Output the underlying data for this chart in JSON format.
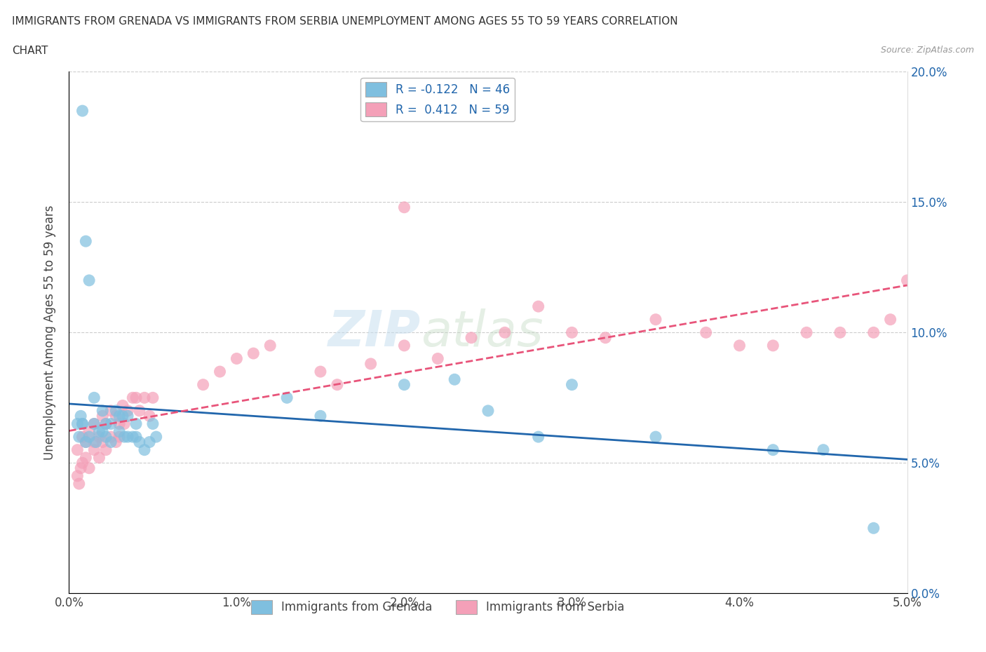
{
  "title_line1": "IMMIGRANTS FROM GRENADA VS IMMIGRANTS FROM SERBIA UNEMPLOYMENT AMONG AGES 55 TO 59 YEARS CORRELATION",
  "title_line2": "CHART",
  "source": "Source: ZipAtlas.com",
  "ylabel": "Unemployment Among Ages 55 to 59 years",
  "legend_grenada": "Immigrants from Grenada",
  "legend_serbia": "Immigrants from Serbia",
  "r_grenada": -0.122,
  "n_grenada": 46,
  "r_serbia": 0.412,
  "n_serbia": 59,
  "xlim": [
    0.0,
    0.05
  ],
  "ylim": [
    0.0,
    0.2
  ],
  "xtick_vals": [
    0.0,
    0.01,
    0.02,
    0.03,
    0.04,
    0.05
  ],
  "xtick_labels": [
    "0.0%",
    "1.0%",
    "2.0%",
    "3.0%",
    "4.0%",
    "5.0%"
  ],
  "ytick_vals": [
    0.0,
    0.05,
    0.1,
    0.15,
    0.2
  ],
  "ytick_labels": [
    "0.0%",
    "5.0%",
    "10.0%",
    "15.0%",
    "20.0%"
  ],
  "color_grenada": "#7fbfdf",
  "color_serbia": "#f4a0b8",
  "line_color_grenada": "#2166ac",
  "line_color_serbia": "#e8547a",
  "watermark_zip": "ZIP",
  "watermark_atlas": "atlas",
  "grenada_x": [
    0.0008,
    0.0015,
    0.002,
    0.0022,
    0.0025,
    0.0028,
    0.003,
    0.003,
    0.0032,
    0.0033,
    0.0035,
    0.0035,
    0.0038,
    0.004,
    0.004,
    0.0042,
    0.0045,
    0.0048,
    0.005,
    0.0052,
    0.0005,
    0.0006,
    0.0007,
    0.0008,
    0.001,
    0.0012,
    0.0015,
    0.0016,
    0.0018,
    0.002,
    0.0022,
    0.0025,
    0.0008,
    0.001,
    0.0012,
    0.013,
    0.015,
    0.02,
    0.023,
    0.025,
    0.028,
    0.03,
    0.035,
    0.042,
    0.045,
    0.048
  ],
  "grenada_y": [
    0.065,
    0.075,
    0.07,
    0.065,
    0.065,
    0.07,
    0.068,
    0.062,
    0.068,
    0.06,
    0.068,
    0.06,
    0.06,
    0.06,
    0.065,
    0.058,
    0.055,
    0.058,
    0.065,
    0.06,
    0.065,
    0.06,
    0.068,
    0.065,
    0.058,
    0.06,
    0.065,
    0.058,
    0.062,
    0.062,
    0.06,
    0.058,
    0.185,
    0.135,
    0.12,
    0.075,
    0.068,
    0.08,
    0.082,
    0.07,
    0.06,
    0.08,
    0.06,
    0.055,
    0.055,
    0.025
  ],
  "serbia_x": [
    0.0005,
    0.0008,
    0.001,
    0.0012,
    0.0015,
    0.0015,
    0.0018,
    0.002,
    0.0022,
    0.0025,
    0.0028,
    0.003,
    0.0032,
    0.0033,
    0.0035,
    0.0038,
    0.004,
    0.0042,
    0.0045,
    0.0048,
    0.005,
    0.0005,
    0.0006,
    0.0007,
    0.0008,
    0.001,
    0.0012,
    0.0015,
    0.0018,
    0.002,
    0.0022,
    0.0025,
    0.0028,
    0.003,
    0.008,
    0.009,
    0.01,
    0.011,
    0.012,
    0.015,
    0.016,
    0.018,
    0.02,
    0.022,
    0.024,
    0.026,
    0.028,
    0.03,
    0.032,
    0.035,
    0.038,
    0.04,
    0.042,
    0.044,
    0.046,
    0.048,
    0.049,
    0.05,
    0.02
  ],
  "serbia_y": [
    0.055,
    0.06,
    0.058,
    0.062,
    0.065,
    0.058,
    0.06,
    0.068,
    0.065,
    0.07,
    0.068,
    0.06,
    0.072,
    0.065,
    0.07,
    0.075,
    0.075,
    0.07,
    0.075,
    0.068,
    0.075,
    0.045,
    0.042,
    0.048,
    0.05,
    0.052,
    0.048,
    0.055,
    0.052,
    0.058,
    0.055,
    0.06,
    0.058,
    0.065,
    0.08,
    0.085,
    0.09,
    0.092,
    0.095,
    0.085,
    0.08,
    0.088,
    0.095,
    0.09,
    0.098,
    0.1,
    0.11,
    0.1,
    0.098,
    0.105,
    0.1,
    0.095,
    0.095,
    0.1,
    0.1,
    0.1,
    0.105,
    0.12,
    0.148
  ]
}
